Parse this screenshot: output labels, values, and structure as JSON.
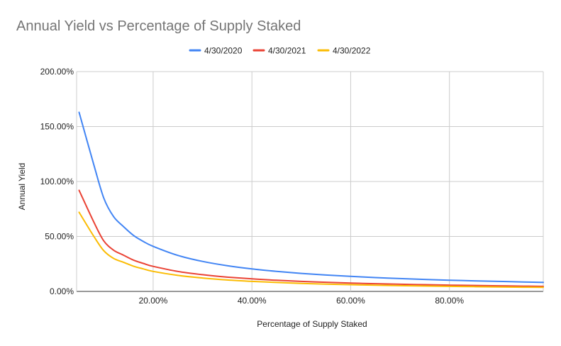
{
  "chart_data": {
    "type": "line",
    "title": "Annual Yield vs Percentage of Supply Staked",
    "xlabel": "Percentage of Supply Staked",
    "ylabel": "Annual Yield",
    "xlim": [
      4.5,
      99
    ],
    "ylim": [
      0,
      200
    ],
    "x_ticks": [
      20,
      40,
      60,
      80
    ],
    "x_tick_labels": [
      "20.00%",
      "40.00%",
      "60.00%",
      "80.00%"
    ],
    "y_ticks": [
      0,
      50,
      100,
      150,
      200
    ],
    "y_tick_labels": [
      "0.00%",
      "50.00%",
      "100.00%",
      "150.00%",
      "200.00%"
    ],
    "grid": true,
    "legend_position": "top",
    "x": [
      5,
      8,
      10,
      12,
      14,
      16,
      18,
      20,
      25,
      30,
      35,
      40,
      45,
      50,
      55,
      60,
      65,
      70,
      75,
      80,
      85,
      90,
      95,
      99
    ],
    "series": [
      {
        "name": "4/30/2020",
        "color": "#4285f4",
        "values": [
          163,
          115,
          85,
          68,
          59,
          51,
          45.5,
          41,
          32.8,
          27.3,
          23.4,
          20.5,
          18.2,
          16.4,
          14.9,
          13.7,
          12.6,
          11.7,
          10.9,
          10.2,
          9.6,
          9.1,
          8.6,
          8.2
        ]
      },
      {
        "name": "4/30/2021",
        "color": "#ea4335",
        "values": [
          92,
          63,
          46,
          37.5,
          33,
          28.5,
          25.5,
          22.8,
          18.2,
          15.2,
          13.0,
          11.4,
          10.1,
          9.1,
          8.3,
          7.6,
          7.0,
          6.5,
          6.1,
          5.7,
          5.4,
          5.1,
          4.8,
          4.6
        ]
      },
      {
        "name": "4/30/2022",
        "color": "#fbbc04",
        "values": [
          72,
          50,
          37,
          30,
          26.5,
          23,
          20.5,
          18.2,
          14.6,
          12.2,
          10.4,
          9.1,
          8.1,
          7.3,
          6.6,
          6.1,
          5.6,
          5.2,
          4.9,
          4.6,
          4.3,
          4.0,
          3.8,
          3.7
        ]
      }
    ]
  }
}
